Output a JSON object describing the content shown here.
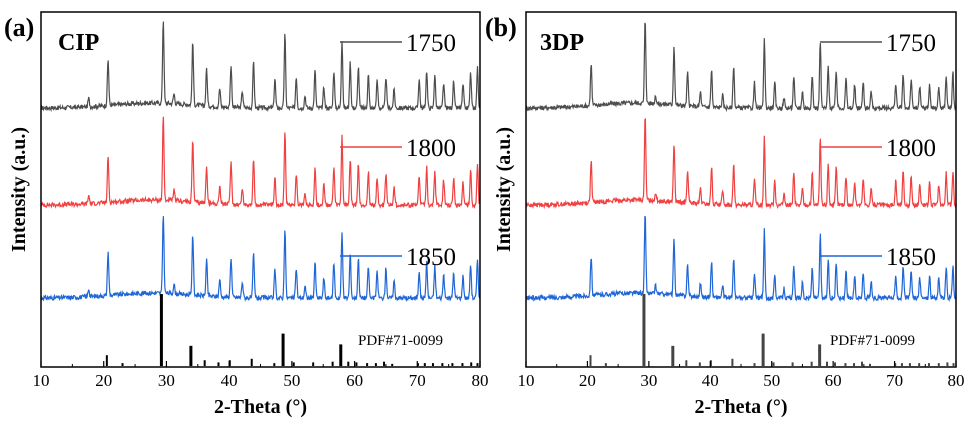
{
  "chart_data": [
    {
      "type": "line",
      "panel_label": "(a)",
      "sample": "CIP",
      "xlabel": "2-Theta (°)",
      "ylabel": "Intensity (a.u.)",
      "xlim": [
        10,
        80
      ],
      "xticks": [
        10,
        20,
        30,
        40,
        50,
        60,
        70,
        80
      ],
      "legend_placement": "right of each curve",
      "reference": {
        "name": "PDF#71-0099",
        "color": "#000000",
        "peaks": [
          {
            "x": 20.5,
            "i": 0.15
          },
          {
            "x": 23.0,
            "i": 0.04
          },
          {
            "x": 29.2,
            "i": 1.0
          },
          {
            "x": 33.9,
            "i": 0.28
          },
          {
            "x": 36.1,
            "i": 0.08
          },
          {
            "x": 38.3,
            "i": 0.05
          },
          {
            "x": 40.1,
            "i": 0.08
          },
          {
            "x": 43.6,
            "i": 0.1
          },
          {
            "x": 47.2,
            "i": 0.04
          },
          {
            "x": 48.6,
            "i": 0.45
          },
          {
            "x": 50.3,
            "i": 0.05
          },
          {
            "x": 53.4,
            "i": 0.05
          },
          {
            "x": 56.5,
            "i": 0.06
          },
          {
            "x": 57.8,
            "i": 0.3
          },
          {
            "x": 59.0,
            "i": 0.06
          },
          {
            "x": 60.3,
            "i": 0.05
          },
          {
            "x": 62.0,
            "i": 0.04
          },
          {
            "x": 63.4,
            "i": 0.04
          },
          {
            "x": 64.7,
            "i": 0.06
          },
          {
            "x": 66.0,
            "i": 0.03
          },
          {
            "x": 70.1,
            "i": 0.04
          },
          {
            "x": 71.2,
            "i": 0.04
          },
          {
            "x": 72.5,
            "i": 0.04
          },
          {
            "x": 74.0,
            "i": 0.04
          },
          {
            "x": 75.6,
            "i": 0.04
          },
          {
            "x": 77.2,
            "i": 0.04
          },
          {
            "x": 78.6,
            "i": 0.05
          },
          {
            "x": 79.6,
            "i": 0.04
          }
        ]
      },
      "series": [
        {
          "name": "1750",
          "color": "#4d4d4d"
        },
        {
          "name": "1800",
          "color": "#f04040"
        },
        {
          "name": "1850",
          "color": "#1f66d6"
        }
      ],
      "pattern_peaks": [
        {
          "x": 17.6,
          "i": 0.1
        },
        {
          "x": 20.7,
          "i": 0.55
        },
        {
          "x": 29.5,
          "i": 1.0
        },
        {
          "x": 31.2,
          "i": 0.12
        },
        {
          "x": 34.2,
          "i": 0.75
        },
        {
          "x": 36.4,
          "i": 0.45
        },
        {
          "x": 38.5,
          "i": 0.22
        },
        {
          "x": 40.3,
          "i": 0.5
        },
        {
          "x": 42.1,
          "i": 0.2
        },
        {
          "x": 43.9,
          "i": 0.55
        },
        {
          "x": 47.3,
          "i": 0.35
        },
        {
          "x": 48.9,
          "i": 0.88
        },
        {
          "x": 50.7,
          "i": 0.38
        },
        {
          "x": 52.1,
          "i": 0.15
        },
        {
          "x": 53.7,
          "i": 0.45
        },
        {
          "x": 55.1,
          "i": 0.25
        },
        {
          "x": 56.7,
          "i": 0.45
        },
        {
          "x": 58.0,
          "i": 0.82
        },
        {
          "x": 59.3,
          "i": 0.55
        },
        {
          "x": 60.6,
          "i": 0.5
        },
        {
          "x": 62.2,
          "i": 0.4
        },
        {
          "x": 63.6,
          "i": 0.32
        },
        {
          "x": 65.0,
          "i": 0.38
        },
        {
          "x": 66.3,
          "i": 0.22
        },
        {
          "x": 70.3,
          "i": 0.35
        },
        {
          "x": 71.5,
          "i": 0.45
        },
        {
          "x": 72.8,
          "i": 0.4
        },
        {
          "x": 74.2,
          "i": 0.3
        },
        {
          "x": 75.8,
          "i": 0.32
        },
        {
          "x": 77.3,
          "i": 0.28
        },
        {
          "x": 78.5,
          "i": 0.42
        },
        {
          "x": 79.6,
          "i": 0.48
        }
      ]
    },
    {
      "type": "line",
      "panel_label": "(b)",
      "sample": "3DP",
      "xlabel": "2-Theta (°)",
      "ylabel": "Intensity (a.u.)",
      "xlim": [
        10,
        80
      ],
      "xticks": [
        10,
        20,
        30,
        40,
        50,
        60,
        70,
        80
      ],
      "legend_placement": "right of each curve",
      "reference": {
        "name": "PDF#71-0099",
        "color": "#444444",
        "peaks": [
          {
            "x": 20.5,
            "i": 0.15
          },
          {
            "x": 23.0,
            "i": 0.04
          },
          {
            "x": 29.2,
            "i": 1.0
          },
          {
            "x": 33.9,
            "i": 0.28
          },
          {
            "x": 36.1,
            "i": 0.08
          },
          {
            "x": 38.3,
            "i": 0.05
          },
          {
            "x": 40.1,
            "i": 0.08
          },
          {
            "x": 43.6,
            "i": 0.1
          },
          {
            "x": 47.2,
            "i": 0.04
          },
          {
            "x": 48.6,
            "i": 0.45
          },
          {
            "x": 50.3,
            "i": 0.05
          },
          {
            "x": 53.4,
            "i": 0.05
          },
          {
            "x": 56.5,
            "i": 0.06
          },
          {
            "x": 57.8,
            "i": 0.3
          },
          {
            "x": 59.0,
            "i": 0.06
          },
          {
            "x": 60.3,
            "i": 0.05
          },
          {
            "x": 62.0,
            "i": 0.04
          },
          {
            "x": 63.4,
            "i": 0.04
          },
          {
            "x": 64.7,
            "i": 0.06
          },
          {
            "x": 66.0,
            "i": 0.03
          },
          {
            "x": 70.1,
            "i": 0.04
          },
          {
            "x": 71.2,
            "i": 0.04
          },
          {
            "x": 72.5,
            "i": 0.04
          },
          {
            "x": 74.0,
            "i": 0.04
          },
          {
            "x": 75.6,
            "i": 0.04
          },
          {
            "x": 77.2,
            "i": 0.04
          },
          {
            "x": 78.6,
            "i": 0.05
          },
          {
            "x": 79.6,
            "i": 0.04
          }
        ]
      },
      "series": [
        {
          "name": "1750",
          "color": "#4d4d4d"
        },
        {
          "name": "1800",
          "color": "#f04040"
        },
        {
          "name": "1850",
          "color": "#1f66d6"
        }
      ],
      "pattern_peaks": [
        {
          "x": 20.6,
          "i": 0.5
        },
        {
          "x": 29.4,
          "i": 1.0
        },
        {
          "x": 31.1,
          "i": 0.1
        },
        {
          "x": 34.1,
          "i": 0.7
        },
        {
          "x": 36.3,
          "i": 0.4
        },
        {
          "x": 38.4,
          "i": 0.18
        },
        {
          "x": 40.2,
          "i": 0.45
        },
        {
          "x": 42.0,
          "i": 0.15
        },
        {
          "x": 43.8,
          "i": 0.5
        },
        {
          "x": 47.2,
          "i": 0.3
        },
        {
          "x": 48.8,
          "i": 0.85
        },
        {
          "x": 50.5,
          "i": 0.3
        },
        {
          "x": 52.0,
          "i": 0.12
        },
        {
          "x": 53.6,
          "i": 0.38
        },
        {
          "x": 55.0,
          "i": 0.2
        },
        {
          "x": 56.6,
          "i": 0.38
        },
        {
          "x": 57.9,
          "i": 0.8
        },
        {
          "x": 59.2,
          "i": 0.5
        },
        {
          "x": 60.5,
          "i": 0.45
        },
        {
          "x": 62.1,
          "i": 0.35
        },
        {
          "x": 63.5,
          "i": 0.28
        },
        {
          "x": 64.9,
          "i": 0.32
        },
        {
          "x": 66.2,
          "i": 0.2
        },
        {
          "x": 70.2,
          "i": 0.3
        },
        {
          "x": 71.4,
          "i": 0.4
        },
        {
          "x": 72.7,
          "i": 0.35
        },
        {
          "x": 74.1,
          "i": 0.25
        },
        {
          "x": 75.7,
          "i": 0.28
        },
        {
          "x": 77.2,
          "i": 0.25
        },
        {
          "x": 78.4,
          "i": 0.38
        },
        {
          "x": 79.5,
          "i": 0.42
        }
      ]
    }
  ]
}
